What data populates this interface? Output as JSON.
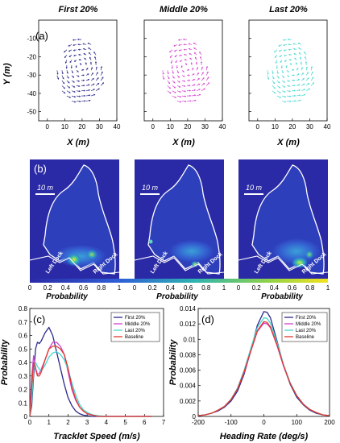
{
  "colors": {
    "first": "#2a2a8c",
    "middle": "#d63fd0",
    "last": "#46d8d0",
    "baseline": "#e03a2a",
    "heat_bg": "#2b2aa6"
  },
  "panel_a": {
    "label": "(a)",
    "titles": [
      "First 20%",
      "Middle 20%",
      "Last 20%"
    ],
    "xlabel": "X (m)",
    "ylabel": "Y (m)",
    "xticks": [
      "0",
      "10",
      "20",
      "30",
      "40"
    ],
    "yticks": [
      "-10",
      "-20",
      "-30",
      "-40",
      "-50"
    ]
  },
  "panel_b": {
    "label": "(b)",
    "scale_label": "10 m",
    "left_dock": "Left Dock",
    "right_dock": "Right Dock",
    "xlabel": "Probability",
    "cbar_ticks": [
      "0",
      "0.2",
      "0.4",
      "0.6",
      "0.8",
      "1"
    ]
  },
  "chart_data": [
    {
      "type": "line",
      "label": "(c)",
      "xlabel": "Tracklet Speed (m/s)",
      "ylabel": "Probability",
      "xlim": [
        0,
        7
      ],
      "ylim": [
        0,
        0.8
      ],
      "xticks": [
        "0",
        "1",
        "2",
        "3",
        "4",
        "5",
        "6",
        "7"
      ],
      "yticks": [
        "0",
        "0.1",
        "0.2",
        "0.3",
        "0.4",
        "0.5",
        "0.6",
        "0.7",
        "0.8"
      ],
      "legend": "top-right",
      "x": [
        0,
        0.1,
        0.2,
        0.3,
        0.4,
        0.5,
        0.6,
        0.8,
        1.0,
        1.2,
        1.4,
        1.6,
        1.8,
        2.0,
        2.2,
        2.4,
        2.6,
        2.8,
        3.0,
        3.3,
        3.6,
        4.0,
        5.0,
        6.0,
        6.4
      ],
      "series": [
        {
          "name": "First 20%",
          "color_key": "first",
          "values": [
            0.0,
            0.08,
            0.3,
            0.5,
            0.55,
            0.54,
            0.56,
            0.62,
            0.66,
            0.6,
            0.48,
            0.36,
            0.24,
            0.14,
            0.08,
            0.04,
            0.02,
            0.01,
            0.005,
            0.0,
            0.0,
            0.0,
            0.0,
            0.0,
            0.0
          ]
        },
        {
          "name": "Middle 20%",
          "color_key": "middle",
          "values": [
            0.0,
            0.3,
            0.45,
            0.36,
            0.31,
            0.32,
            0.35,
            0.42,
            0.5,
            0.55,
            0.55,
            0.52,
            0.46,
            0.33,
            0.2,
            0.12,
            0.07,
            0.04,
            0.02,
            0.01,
            0.0,
            0.0,
            0.0,
            0.0,
            0.0
          ]
        },
        {
          "name": "Last 20%",
          "color_key": "last",
          "values": [
            0.0,
            0.12,
            0.35,
            0.4,
            0.37,
            0.35,
            0.34,
            0.38,
            0.44,
            0.47,
            0.48,
            0.46,
            0.42,
            0.35,
            0.25,
            0.16,
            0.09,
            0.05,
            0.03,
            0.01,
            0.005,
            0.0,
            0.0,
            0.0,
            0.0
          ]
        },
        {
          "name": "Baseline",
          "color_key": "baseline",
          "values": [
            0.0,
            0.22,
            0.4,
            0.35,
            0.3,
            0.3,
            0.33,
            0.42,
            0.5,
            0.52,
            0.52,
            0.5,
            0.46,
            0.36,
            0.22,
            0.13,
            0.07,
            0.04,
            0.02,
            0.01,
            0.0,
            0.0,
            0.0,
            0.0,
            0.0
          ]
        }
      ]
    },
    {
      "type": "line",
      "label": "(d)",
      "xlabel": "Heading Rate (deg/s)",
      "ylabel": "Probability",
      "xlim": [
        -200,
        200
      ],
      "ylim": [
        0,
        0.014
      ],
      "xticks": [
        "-200",
        "-100",
        "0",
        "100",
        "200"
      ],
      "yticks": [
        "0",
        "0.002",
        "0.004",
        "0.006",
        "0.008",
        "0.01",
        "0.012",
        "0.014"
      ],
      "legend": "top-right",
      "x": [
        -200,
        -180,
        -160,
        -140,
        -120,
        -100,
        -80,
        -60,
        -40,
        -20,
        0,
        10,
        20,
        40,
        60,
        80,
        100,
        120,
        140,
        160,
        180,
        200
      ],
      "series": [
        {
          "name": "First 20%",
          "color_key": "first",
          "values": [
            0.0001,
            0.0002,
            0.0004,
            0.0007,
            0.0012,
            0.002,
            0.0033,
            0.0055,
            0.0085,
            0.0118,
            0.0136,
            0.0135,
            0.0128,
            0.0098,
            0.0066,
            0.0042,
            0.0025,
            0.0015,
            0.0008,
            0.0004,
            0.0002,
            0.0001
          ]
        },
        {
          "name": "Middle 20%",
          "color_key": "middle",
          "values": [
            0.0001,
            0.0002,
            0.0004,
            0.0008,
            0.0013,
            0.0022,
            0.0036,
            0.0057,
            0.0084,
            0.011,
            0.0121,
            0.012,
            0.0115,
            0.0092,
            0.0065,
            0.0043,
            0.0027,
            0.0016,
            0.0009,
            0.0005,
            0.0002,
            0.0001
          ]
        },
        {
          "name": "Last 20%",
          "color_key": "last",
          "values": [
            0.0001,
            0.0002,
            0.0004,
            0.0008,
            0.0013,
            0.0022,
            0.0037,
            0.006,
            0.0088,
            0.0115,
            0.0128,
            0.0127,
            0.0121,
            0.0096,
            0.0067,
            0.0044,
            0.0027,
            0.0016,
            0.0009,
            0.0005,
            0.0002,
            0.0001
          ]
        },
        {
          "name": "Baseline",
          "color_key": "baseline",
          "values": [
            0.0001,
            0.0002,
            0.0004,
            0.0008,
            0.0013,
            0.0022,
            0.0036,
            0.0058,
            0.0085,
            0.0111,
            0.0123,
            0.0122,
            0.0116,
            0.0093,
            0.0066,
            0.0043,
            0.0027,
            0.0016,
            0.0009,
            0.0005,
            0.0002,
            0.0001
          ]
        }
      ]
    }
  ]
}
